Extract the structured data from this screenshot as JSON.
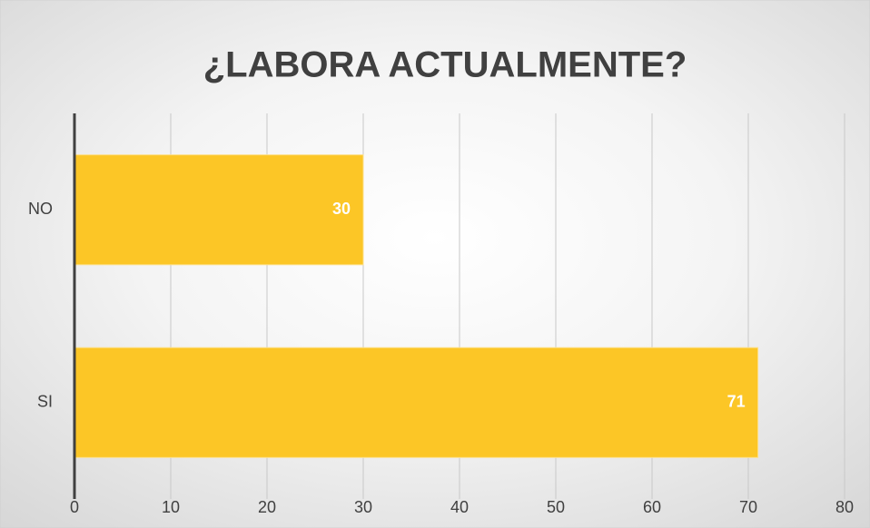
{
  "chart_data": {
    "type": "hbar",
    "title": "¿LABORA ACTUALMENTE?",
    "categories": [
      "NO",
      "SI"
    ],
    "values": [
      30,
      71
    ],
    "color": "#fcc626",
    "xlim": [
      0,
      80
    ],
    "xticks": [
      0,
      10,
      20,
      30,
      40,
      50,
      60,
      70,
      80
    ],
    "grid": true
  }
}
